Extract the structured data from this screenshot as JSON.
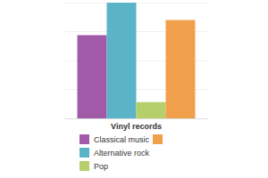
{
  "chart_data": {
    "type": "bar",
    "categories": [
      "Vinyl records"
    ],
    "series": [
      {
        "name": "Classical music",
        "color": "#a05aa8",
        "values": [
          72
        ]
      },
      {
        "name": "Alternative rock",
        "color": "#5bb3c8",
        "values": [
          100
        ]
      },
      {
        "name": "Pop",
        "color": "#b5cf6b",
        "values": [
          14
        ]
      },
      {
        "name": null,
        "color": "#f0a04b",
        "values": [
          85
        ]
      }
    ],
    "ylim": [
      0,
      100
    ],
    "yticks": [
      0,
      25,
      50,
      75,
      100
    ],
    "grid": true,
    "tick_labels": "x",
    "legend": "bottom"
  }
}
